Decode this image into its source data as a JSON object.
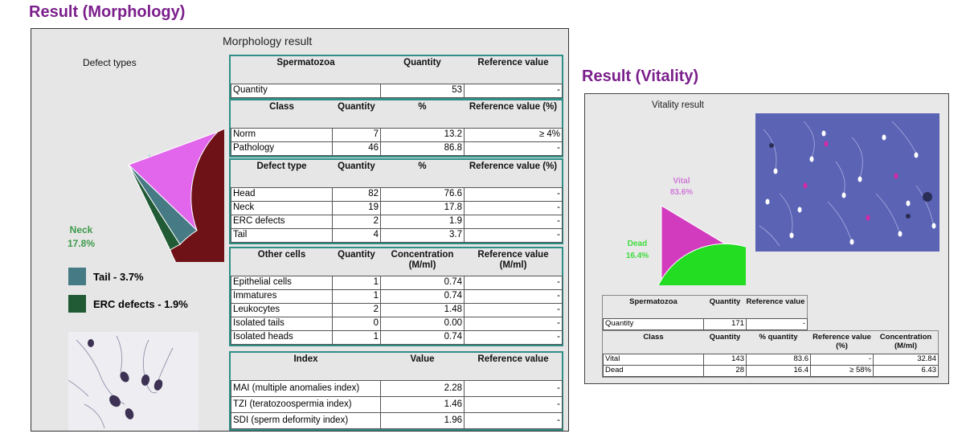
{
  "headings": {
    "morphology": "Result (Morphology)",
    "vitality": "Result (Vitality)"
  },
  "morphology": {
    "panel_title": "Morphology result",
    "chart_title": "Defect types",
    "chart_data": {
      "type": "pie",
      "title": "Defect types",
      "slices": [
        {
          "name": "Head",
          "value": 76.6,
          "label": "Head",
          "pct": "76.6%",
          "color": "#6e1218"
        },
        {
          "name": "Neck",
          "value": 17.8,
          "label": "Neck",
          "pct": "17.8%",
          "color": "#e266ec"
        },
        {
          "name": "Tail",
          "value": 3.7,
          "color": "#467a84"
        },
        {
          "name": "ERC defects",
          "value": 1.9,
          "color": "#215b35"
        }
      ]
    },
    "legend": [
      {
        "label": "Tail - 3.7%",
        "color": "#467a84"
      },
      {
        "label": "ERC defects - 1.9%",
        "color": "#215b35"
      }
    ],
    "spermatozoa": {
      "headers": [
        "Spermatozoa",
        "Quantity",
        "Reference value"
      ],
      "rows": [
        [
          "Quantity",
          "53",
          "-"
        ]
      ]
    },
    "class": {
      "headers": [
        "Class",
        "Quantity",
        "%",
        "Reference value (%)"
      ],
      "rows": [
        [
          "Norm",
          "7",
          "13.2",
          "≥ 4%"
        ],
        [
          "Pathology",
          "46",
          "86.8",
          "-"
        ]
      ]
    },
    "defect": {
      "headers": [
        "Defect type",
        "Quantity",
        "%",
        "Reference value (%)"
      ],
      "rows": [
        [
          "Head",
          "82",
          "76.6",
          "-"
        ],
        [
          "Neck",
          "19",
          "17.8",
          "-"
        ],
        [
          "ERC defects",
          "2",
          "1.9",
          "-"
        ],
        [
          "Tail",
          "4",
          "3.7",
          "-"
        ]
      ]
    },
    "other": {
      "headers": [
        "Other cells",
        "Quantity",
        "Concentration (M/ml)",
        "Reference value (M/ml)"
      ],
      "rows": [
        [
          "Epithelial cells",
          "1",
          "0.74",
          "-"
        ],
        [
          "Immatures",
          "1",
          "0.74",
          "-"
        ],
        [
          "Leukocytes",
          "2",
          "1.48",
          "-"
        ],
        [
          "Isolated tails",
          "0",
          "0.00",
          "-"
        ],
        [
          "Isolated heads",
          "1",
          "0.74",
          "-"
        ]
      ]
    },
    "index": {
      "headers": [
        "Index",
        "Value",
        "Reference value"
      ],
      "rows": [
        [
          "MAI (multiple anomalies index)",
          "2.28",
          "-"
        ],
        [
          "TZI (teratozoospermia index)",
          "1.46",
          "-"
        ],
        [
          "SDI (sperm deformity index)",
          "1.96",
          "-"
        ]
      ]
    }
  },
  "vitality": {
    "panel_title": "Vitality result",
    "chart_data": {
      "type": "pie",
      "slices": [
        {
          "name": "Vital",
          "value": 83.6,
          "label": "Vital",
          "pct": "83.6%",
          "color": "#22dd22"
        },
        {
          "name": "Dead",
          "value": 16.4,
          "label": "Dead",
          "pct": "16.4%",
          "color": "#d23bbe"
        }
      ]
    },
    "spermatozoa": {
      "headers": [
        "Spermatozoa",
        "Quantity",
        "Reference value"
      ],
      "rows": [
        [
          "Quantity",
          "171",
          "-"
        ]
      ]
    },
    "class": {
      "headers": [
        "Class",
        "Quantity",
        "% quantity",
        "Reference value (%)",
        "Concentration (M/ml)"
      ],
      "rows": [
        [
          "Vital",
          "143",
          "83.6",
          "-",
          "32.84"
        ],
        [
          "Dead",
          "28",
          "16.4",
          "≥ 58%",
          "6.43"
        ]
      ]
    }
  }
}
